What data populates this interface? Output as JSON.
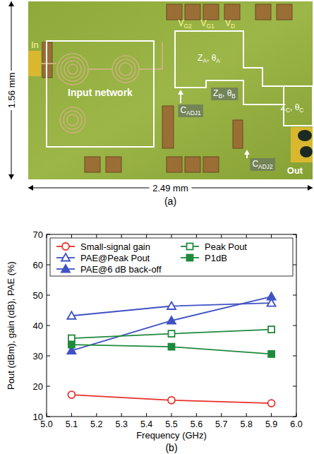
{
  "photo": {
    "labels": [
      {
        "parts": [
          "In"
        ]
      },
      {
        "parts": [
          "Input network"
        ]
      },
      {
        "parts": [
          "V",
          "G2"
        ]
      },
      {
        "parts": [
          "V",
          "G1"
        ]
      },
      {
        "parts": [
          "V",
          "D"
        ]
      },
      {
        "parts": [
          "Z",
          "A",
          ", θ",
          "A"
        ]
      },
      {
        "parts": [
          "Z",
          "B",
          ", θ",
          "B"
        ]
      },
      {
        "parts": [
          "Z",
          "C",
          ", θ",
          "C"
        ]
      },
      {
        "parts": [
          "C",
          "ADJ1"
        ]
      },
      {
        "parts": [
          "C",
          "ADJ2"
        ]
      },
      {
        "parts": [
          "Out"
        ]
      }
    ],
    "dimensions": {
      "height": "1.56 mm",
      "width": "2.49 mm"
    }
  },
  "chart_data": {
    "type": "line",
    "x_label": "Frequency (GHz)",
    "y_label": "Pout (dBm), gain (dB), PAE (%)",
    "x": [
      5.1,
      5.5,
      5.9
    ],
    "xlim": [
      5.0,
      6.0
    ],
    "xticks": [
      {
        "value": 5.0,
        "label": "5.0"
      },
      5.1,
      5.2,
      5.3,
      5.4,
      5.5,
      5.6,
      5.7,
      5.8,
      5.9,
      {
        "value": 6.0,
        "label": "6.0"
      }
    ],
    "ylim": [
      10,
      70
    ],
    "yticks": [
      10,
      20,
      30,
      40,
      50,
      60,
      70
    ],
    "grid": false,
    "legend": "top",
    "series": [
      {
        "name": "Small-signal gain",
        "color": "#e8302a",
        "marker": "circle-open",
        "line_style": "solid",
        "values": [
          17.2,
          15.4,
          14.4
        ]
      },
      {
        "name": "PAE@Peak Pout",
        "color": "#3f51c4",
        "marker": "triangle-open",
        "line_style": "solid",
        "values": [
          43.2,
          46.4,
          47.4
        ]
      },
      {
        "name": "PAE@6 dB back-off",
        "color": "#3f51c4",
        "marker": "triangle-filled",
        "line_style": "solid",
        "values": [
          31.7,
          41.6,
          49.5
        ]
      },
      {
        "name": "Peak Pout",
        "color": "#1e8a3c",
        "marker": "square-open",
        "line_style": "solid",
        "values": [
          35.8,
          37.3,
          38.7
        ]
      },
      {
        "name": "P1dB",
        "color": "#1e8a3c",
        "marker": "square-filled",
        "line_style": "solid",
        "values": [
          33.7,
          33.0,
          30.6
        ]
      }
    ]
  },
  "captions": [
    "(a)",
    "(b)"
  ]
}
